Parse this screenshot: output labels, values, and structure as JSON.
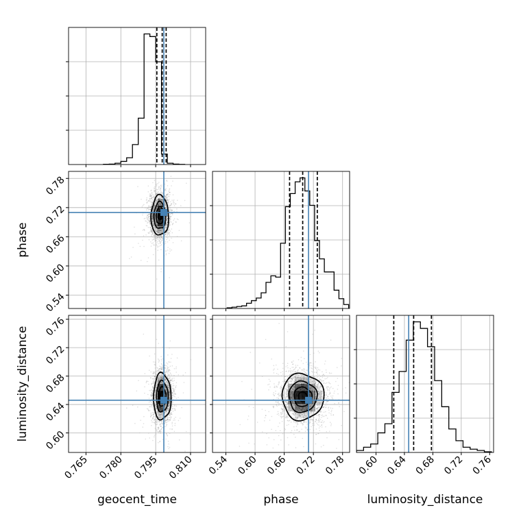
{
  "chart_data": {
    "type": "corner",
    "parameters": [
      "geocent_time",
      "phase",
      "luminosity_distance"
    ],
    "truths": {
      "geocent_time": 0.7985,
      "phase": 0.71,
      "luminosity_distance": 0.646
    },
    "quantiles": {
      "geocent_time": [
        0.7955,
        0.7978,
        0.7995
      ],
      "phase": [
        0.671,
        0.698,
        0.728
      ],
      "luminosity_distance": [
        0.625,
        0.653,
        0.678
      ]
    },
    "ranges": {
      "geocent_time": [
        0.7575,
        0.8165
      ],
      "phase": [
        0.5125,
        0.7945
      ],
      "luminosity_distance": [
        0.5725,
        0.7655
      ]
    },
    "ticks": {
      "geocent_time": [
        "0.765",
        "0.780",
        "0.795",
        "0.810"
      ],
      "phase": [
        "0.54",
        "0.60",
        "0.66",
        "0.72",
        "0.78"
      ],
      "luminosity_distance": [
        "0.60",
        "0.64",
        "0.68",
        "0.72",
        "0.76"
      ]
    },
    "histograms": {
      "geocent_time": {
        "edges": [
          0.7725,
          0.775,
          0.7775,
          0.78,
          0.7825,
          0.785,
          0.7875,
          0.79,
          0.7925,
          0.795,
          0.7975,
          0.8,
          0.8025,
          0.805,
          0.8075
        ],
        "counts": [
          2,
          3,
          10,
          24,
          52,
          153,
          355,
          1000,
          980,
          787,
          80,
          10,
          3,
          1
        ]
      },
      "phase": {
        "edges": [
          0.5425,
          0.5525,
          0.5625,
          0.5725,
          0.5825,
          0.5925,
          0.6025,
          0.6125,
          0.6225,
          0.6325,
          0.6425,
          0.6525,
          0.6625,
          0.6725,
          0.6825,
          0.6925,
          0.7025,
          0.7125,
          0.7225,
          0.7325,
          0.7425,
          0.7525,
          0.7625,
          0.7725,
          0.7825,
          0.7925
        ],
        "counts": [
          5,
          10,
          15,
          20,
          40,
          60,
          80,
          120,
          200,
          250,
          240,
          500,
          780,
          880,
          970,
          1000,
          900,
          790,
          520,
          380,
          280,
          280,
          140,
          75,
          30
        ]
      },
      "luminosity_distance": {
        "edges": [
          0.5725,
          0.5825,
          0.5925,
          0.6025,
          0.6125,
          0.6225,
          0.6325,
          0.6425,
          0.6525,
          0.6625,
          0.6725,
          0.6825,
          0.6925,
          0.7025,
          0.7125,
          0.7225,
          0.7325,
          0.7425,
          0.7525,
          0.7625
        ],
        "counts": [
          15,
          40,
          65,
          150,
          220,
          460,
          620,
          860,
          1000,
          950,
          810,
          550,
          350,
          180,
          90,
          40,
          25,
          15,
          5
        ]
      }
    },
    "contours": [
      {
        "x": "geocent_time",
        "y": "phase",
        "center": [
          0.7968,
          0.7035
        ],
        "sigma": [
          0.0022,
          0.024
        ]
      },
      {
        "x": "geocent_time",
        "y": "luminosity_distance",
        "center": [
          0.7978,
          0.651
        ],
        "sigma": [
          0.0022,
          0.019
        ]
      },
      {
        "x": "phase",
        "y": "luminosity_distance",
        "center": [
          0.698,
          0.651
        ],
        "sigma": [
          0.025,
          0.019
        ]
      }
    ],
    "colors": {
      "truth": "#4682b4",
      "hist": "#000000",
      "grid": "#b0b0b0",
      "points": "#000000"
    }
  }
}
